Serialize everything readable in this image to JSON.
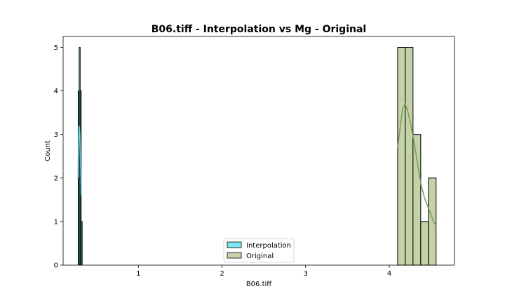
{
  "chart_data": {
    "type": "histogram",
    "title": "B06.tiff - Interpolation vs Mg - Original",
    "xlabel": "B06.tiff",
    "ylabel": "Count",
    "xlim": [
      0.1,
      4.78
    ],
    "ylim": [
      0,
      5.25
    ],
    "xticks": [
      1,
      2,
      3,
      4
    ],
    "yticks": [
      0,
      1,
      2,
      3,
      4,
      5
    ],
    "grid": false,
    "legend_position": "lower-center",
    "series": [
      {
        "name": "Interpolation",
        "color": "#7ee8f2",
        "bins": [
          {
            "x0": 0.28,
            "x1": 0.292,
            "count": 4
          },
          {
            "x0": 0.292,
            "x1": 0.304,
            "count": 5
          },
          {
            "x0": 0.304,
            "x1": 0.316,
            "count": 4
          },
          {
            "x0": 0.316,
            "x1": 0.328,
            "count": 1
          }
        ],
        "kde": [
          [
            0.278,
            2.0
          ],
          [
            0.284,
            2.7
          ],
          [
            0.29,
            3.2
          ],
          [
            0.297,
            3.1
          ],
          [
            0.304,
            2.6
          ],
          [
            0.312,
            2.1
          ],
          [
            0.318,
            1.6
          ]
        ]
      },
      {
        "name": "Original",
        "color": "#c4d2a8",
        "bins": [
          {
            "x0": 4.1,
            "x1": 4.192,
            "count": 5
          },
          {
            "x0": 4.192,
            "x1": 4.284,
            "count": 5
          },
          {
            "x0": 4.284,
            "x1": 4.376,
            "count": 3
          },
          {
            "x0": 4.376,
            "x1": 4.468,
            "count": 1
          },
          {
            "x0": 4.468,
            "x1": 4.56,
            "count": 2
          }
        ],
        "kde": [
          [
            4.1,
            2.7
          ],
          [
            4.13,
            3.15
          ],
          [
            4.16,
            3.6
          ],
          [
            4.19,
            3.7
          ],
          [
            4.22,
            3.55
          ],
          [
            4.26,
            3.2
          ],
          [
            4.3,
            2.8
          ],
          [
            4.34,
            2.3
          ],
          [
            4.38,
            1.85
          ],
          [
            4.42,
            1.55
          ],
          [
            4.46,
            1.35
          ],
          [
            4.5,
            1.15
          ],
          [
            4.53,
            1.0
          ],
          [
            4.56,
            0.9
          ]
        ]
      }
    ],
    "colors": {
      "interpolation_kde": "#67d4e0",
      "original_kde": "#7a9a58",
      "edge": "#000000"
    }
  }
}
